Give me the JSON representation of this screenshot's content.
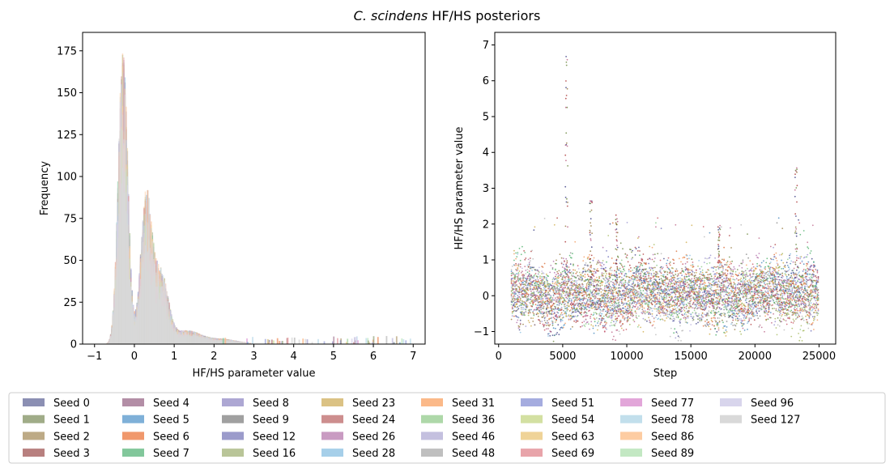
{
  "title_italic": "C. scindens",
  "title_rest": " HF/HS posteriors",
  "chart_data": [
    {
      "type": "bar",
      "subtype": "histogram",
      "xlabel": "HF/HS parameter value",
      "ylabel": "Frequency",
      "xlim": [
        -1.3,
        7.3
      ],
      "ylim": [
        0,
        186
      ],
      "xticks": [
        -1,
        0,
        1,
        2,
        3,
        4,
        5,
        6,
        7
      ],
      "yticks": [
        0,
        25,
        50,
        75,
        100,
        125,
        150,
        175
      ],
      "peaks": [
        {
          "x": -0.3,
          "max_frequency": 178
        },
        {
          "x": 0.3,
          "max_frequency": 90
        }
      ],
      "tail_max_x": 6.95
    },
    {
      "type": "scatter",
      "xlabel": "Step",
      "ylabel": "HF/HS parameter value",
      "xlim": [
        -300,
        26300
      ],
      "ylim": [
        -1.35,
        7.35
      ],
      "xticks": [
        0,
        5000,
        10000,
        15000,
        20000,
        25000
      ],
      "yticks": [
        -1,
        0,
        1,
        2,
        3,
        4,
        5,
        6,
        7
      ],
      "x_range": [
        1000,
        25000
      ],
      "spikes": [
        {
          "step": 5300,
          "max": 6.95
        },
        {
          "step": 23200,
          "max": 3.6
        },
        {
          "step": 7200,
          "max": 2.7
        },
        {
          "step": 9200,
          "max": 2.3
        },
        {
          "step": 17200,
          "max": 2.0
        }
      ]
    }
  ],
  "legend": {
    "columns": 9,
    "entries": [
      {
        "label": "Seed 0",
        "color": "#8b8fb3"
      },
      {
        "label": "Seed 1",
        "color": "#a0ac88"
      },
      {
        "label": "Seed 2",
        "color": "#bdaa86"
      },
      {
        "label": "Seed 3",
        "color": "#b8807f"
      },
      {
        "label": "Seed 4",
        "color": "#b38ea6"
      },
      {
        "label": "Seed 5",
        "color": "#7fb0d8"
      },
      {
        "label": "Seed 6",
        "color": "#f0986c"
      },
      {
        "label": "Seed 7",
        "color": "#82c79b"
      },
      {
        "label": "Seed 8",
        "color": "#ada7d3"
      },
      {
        "label": "Seed 9",
        "color": "#a0a0a0"
      },
      {
        "label": "Seed 12",
        "color": "#9b9bcb"
      },
      {
        "label": "Seed 16",
        "color": "#b9c598"
      },
      {
        "label": "Seed 23",
        "color": "#dbc284"
      },
      {
        "label": "Seed 24",
        "color": "#cd8e8e"
      },
      {
        "label": "Seed 26",
        "color": "#c99bc2"
      },
      {
        "label": "Seed 28",
        "color": "#a6cfe9"
      },
      {
        "label": "Seed 31",
        "color": "#fbb989"
      },
      {
        "label": "Seed 36",
        "color": "#aed8a9"
      },
      {
        "label": "Seed 46",
        "color": "#c4c0df"
      },
      {
        "label": "Seed 48",
        "color": "#bfbfbf"
      },
      {
        "label": "Seed 51",
        "color": "#a5acdf"
      },
      {
        "label": "Seed 54",
        "color": "#d3e0a2"
      },
      {
        "label": "Seed 63",
        "color": "#efd398"
      },
      {
        "label": "Seed 69",
        "color": "#e8a4aa"
      },
      {
        "label": "Seed 77",
        "color": "#e2a6d9"
      },
      {
        "label": "Seed 78",
        "color": "#c2dfec"
      },
      {
        "label": "Seed 86",
        "color": "#fdcca2"
      },
      {
        "label": "Seed 89",
        "color": "#c3e8c3"
      },
      {
        "label": "Seed 96",
        "color": "#d8d5ec"
      },
      {
        "label": "Seed 127",
        "color": "#d9d9d9"
      }
    ]
  }
}
